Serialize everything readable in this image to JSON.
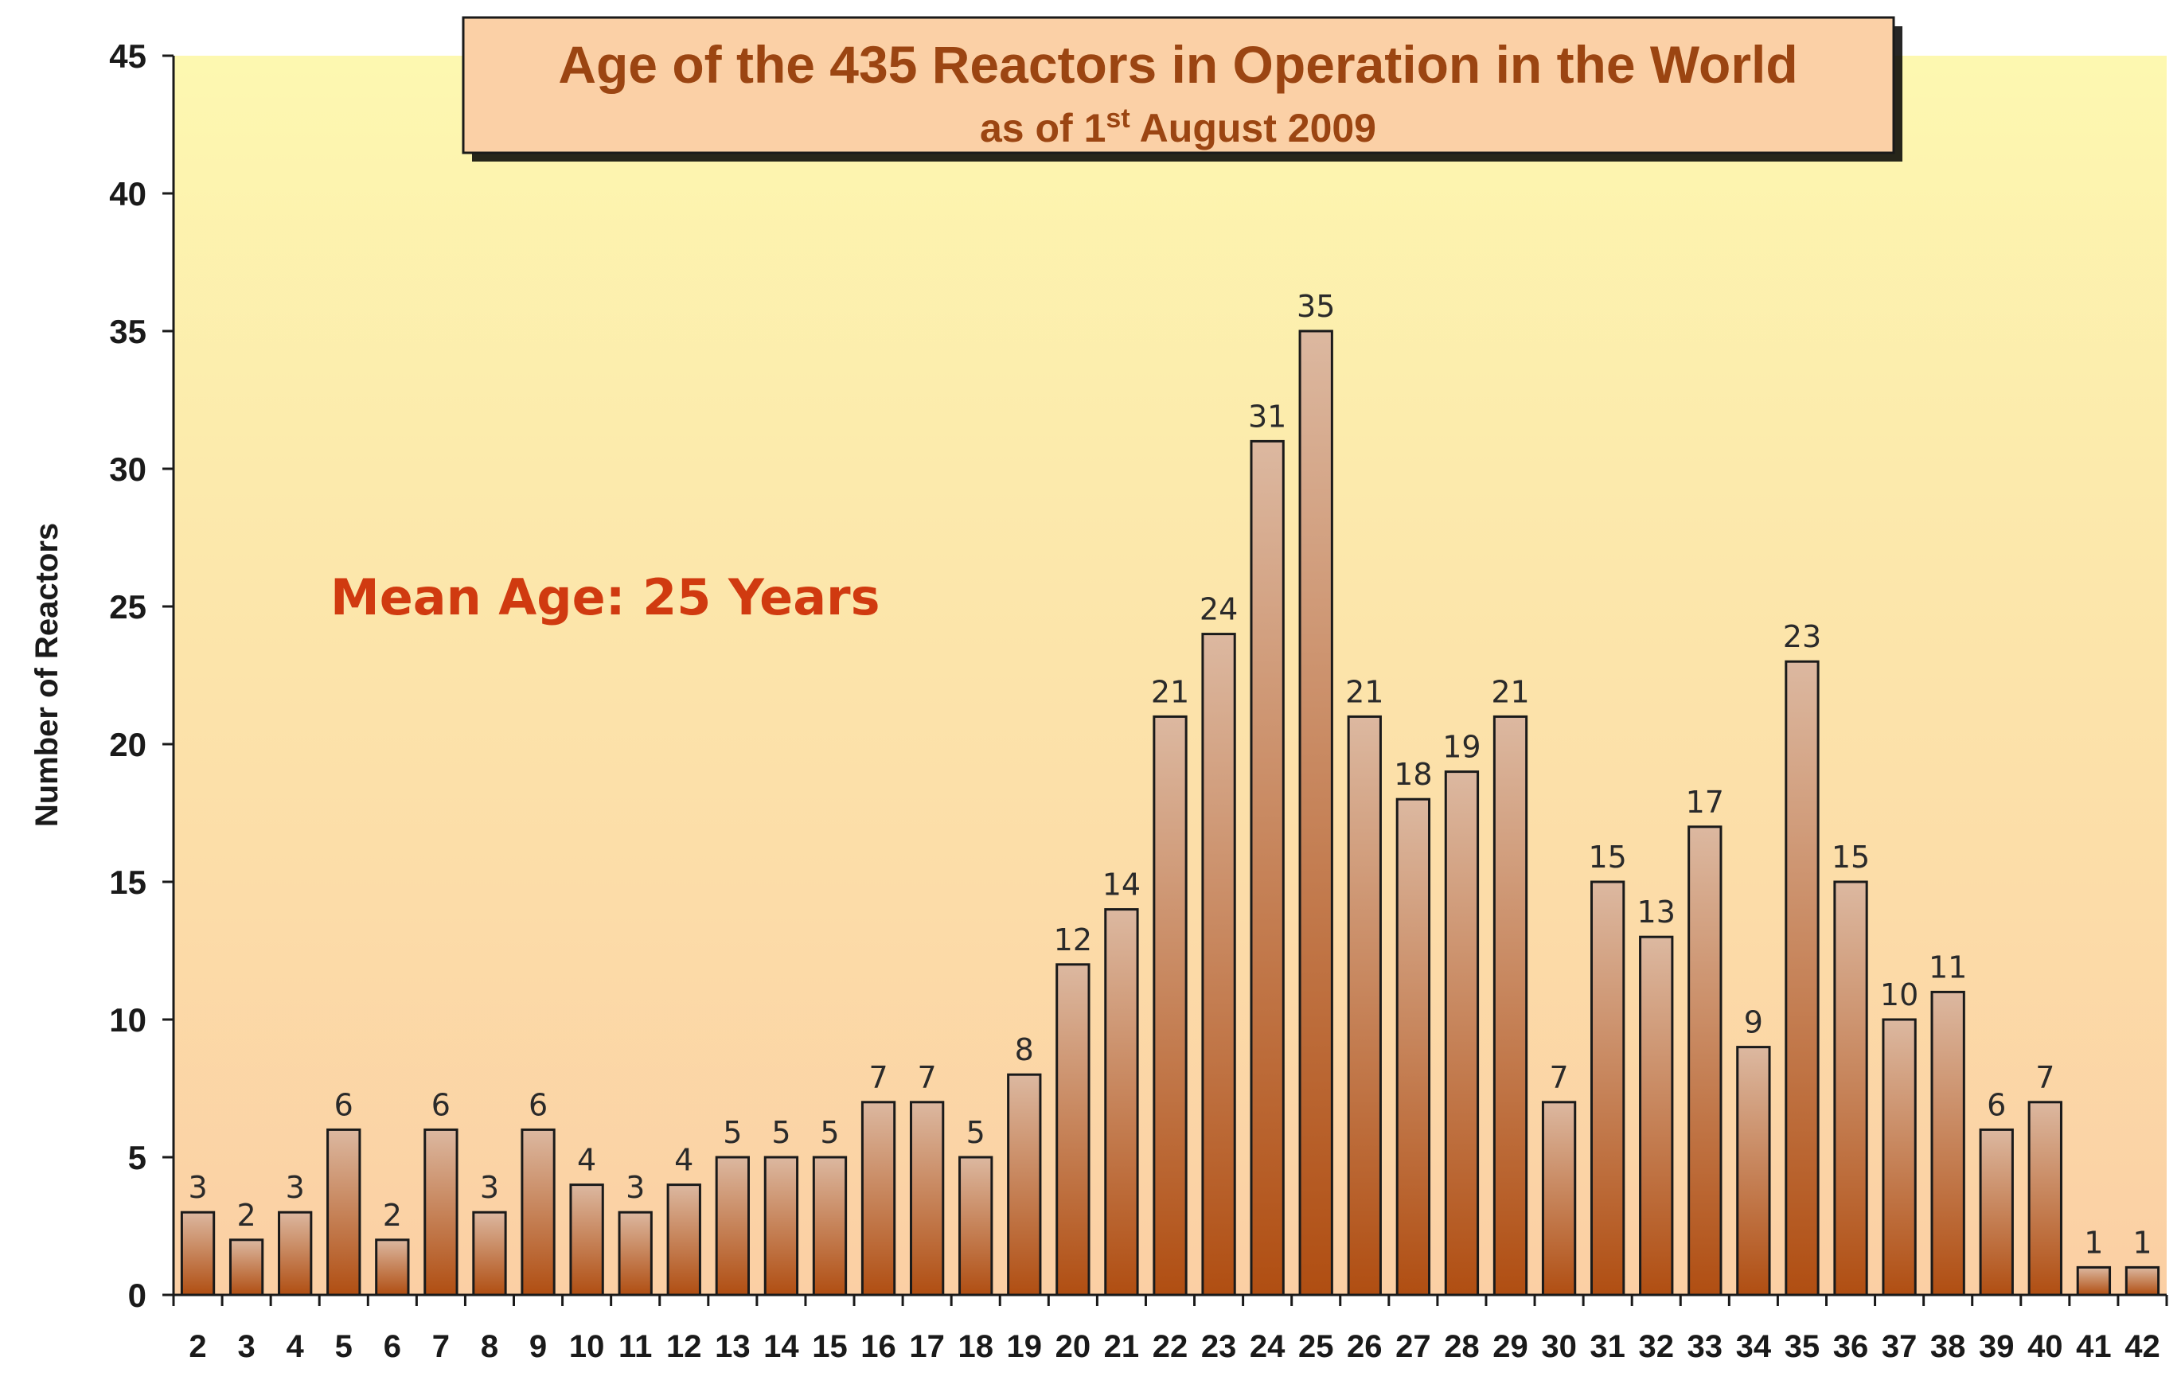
{
  "chart_data": {
    "type": "bar",
    "title": "Age of the 435 Reactors in Operation in the World",
    "subtitle": "as of 1st August 2009",
    "subtitle_parts": {
      "before": "as of 1",
      "superscript": "st",
      "after": " August 2009"
    },
    "annotation": "Mean Age: 25 Years",
    "xlabel": "",
    "ylabel": "Number of Reactors",
    "ylim": [
      0,
      45
    ],
    "yticks": [
      0,
      5,
      10,
      15,
      20,
      25,
      30,
      35,
      40,
      45
    ],
    "grid": false,
    "categories": [
      "2",
      "3",
      "4",
      "5",
      "6",
      "7",
      "8",
      "9",
      "10",
      "11",
      "12",
      "13",
      "14",
      "15",
      "16",
      "17",
      "18",
      "19",
      "20",
      "21",
      "22",
      "23",
      "24",
      "25",
      "26",
      "27",
      "28",
      "29",
      "30",
      "31",
      "32",
      "33",
      "34",
      "35",
      "36",
      "37",
      "38",
      "39",
      "40",
      "41",
      "42"
    ],
    "values": [
      3,
      2,
      3,
      6,
      2,
      6,
      3,
      6,
      4,
      3,
      4,
      5,
      5,
      5,
      7,
      7,
      5,
      8,
      12,
      14,
      21,
      24,
      31,
      35,
      21,
      18,
      19,
      21,
      7,
      15,
      13,
      17,
      9,
      23,
      15,
      10,
      11,
      6,
      7,
      1,
      1
    ],
    "colors": {
      "bar_top": "#dcb8a0",
      "bar_bottom": "#b04e12",
      "bar_stroke": "#1a1a1a",
      "plot_bg_top": "#fdf8b0",
      "plot_bg_bottom": "#fbcfa4",
      "title_box": "#fbd0a6",
      "title_text": "#9b4512",
      "annotation_text": "#d03a10"
    }
  }
}
